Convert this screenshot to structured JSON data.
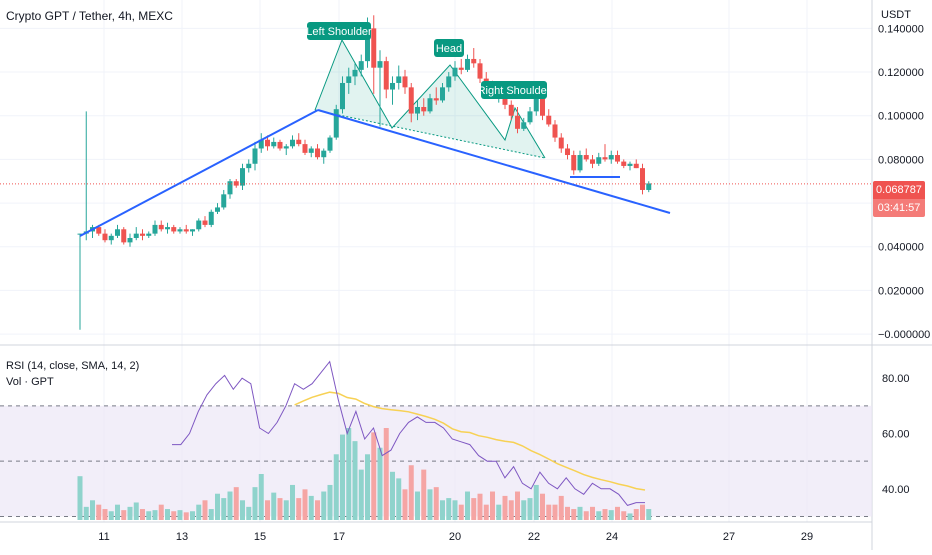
{
  "header": {
    "title": "Crypto GPT / Tether, 4h, MEXC",
    "currency": "USDT",
    "last_price": "0.068787",
    "countdown": "03:41:57"
  },
  "indicators": {
    "rsi_title": "RSI (14, close, SMA, 14, 2)",
    "volume_title": "Vol · GPT"
  },
  "annotations": {
    "left_shoulder": "Left Shoulder",
    "head": "Head",
    "right_shoulder": "Right Shoulder"
  },
  "colors": {
    "up": "#26a69a",
    "down": "#ef5350",
    "trendline": "#2962ff",
    "pattern": "#089981",
    "rsi_line": "#7e57c2",
    "rsi_sma": "#f7d154",
    "rsi_band": "#ede7f6"
  },
  "chart_data": {
    "type": "candlestick",
    "x_tick_labels": [
      "11",
      "13",
      "15",
      "17",
      "20",
      "22",
      "24",
      "27",
      "29"
    ],
    "price_axis": {
      "ticks": [
        "0.140000",
        "0.120000",
        "0.100000",
        "0.080000",
        "0.060000",
        "0.040000",
        "0.020000",
        "−0.000000"
      ],
      "range": [
        -0.005,
        0.153
      ]
    },
    "rsi_axis": {
      "ticks": [
        "80.00",
        "60.00",
        "40.00"
      ],
      "range": [
        28,
        92
      ],
      "band": [
        30,
        70
      ],
      "midline": 50
    },
    "candles": [
      [
        0.046,
        0.046,
        0.002,
        0.046
      ],
      [
        0.046,
        0.102,
        0.043,
        0.047
      ],
      [
        0.047,
        0.05,
        0.044,
        0.049
      ],
      [
        0.049,
        0.05,
        0.045,
        0.046
      ],
      [
        0.046,
        0.048,
        0.042,
        0.043
      ],
      [
        0.043,
        0.046,
        0.041,
        0.045
      ],
      [
        0.045,
        0.05,
        0.044,
        0.048
      ],
      [
        0.048,
        0.049,
        0.041,
        0.042
      ],
      [
        0.042,
        0.046,
        0.04,
        0.044
      ],
      [
        0.044,
        0.049,
        0.043,
        0.046
      ],
      [
        0.046,
        0.048,
        0.043,
        0.045
      ],
      [
        0.045,
        0.047,
        0.044,
        0.046
      ],
      [
        0.046,
        0.052,
        0.045,
        0.05
      ],
      [
        0.05,
        0.052,
        0.047,
        0.048
      ],
      [
        0.048,
        0.051,
        0.046,
        0.049
      ],
      [
        0.049,
        0.05,
        0.046,
        0.047
      ],
      [
        0.047,
        0.049,
        0.046,
        0.048
      ],
      [
        0.048,
        0.05,
        0.046,
        0.047
      ],
      [
        0.047,
        0.048,
        0.045,
        0.048
      ],
      [
        0.048,
        0.053,
        0.047,
        0.052
      ],
      [
        0.052,
        0.054,
        0.049,
        0.05
      ],
      [
        0.05,
        0.057,
        0.049,
        0.056
      ],
      [
        0.056,
        0.06,
        0.055,
        0.058
      ],
      [
        0.058,
        0.066,
        0.057,
        0.064
      ],
      [
        0.064,
        0.071,
        0.062,
        0.07
      ],
      [
        0.07,
        0.071,
        0.067,
        0.068
      ],
      [
        0.068,
        0.078,
        0.066,
        0.076
      ],
      [
        0.076,
        0.08,
        0.074,
        0.078
      ],
      [
        0.078,
        0.088,
        0.075,
        0.085
      ],
      [
        0.085,
        0.092,
        0.083,
        0.089
      ],
      [
        0.089,
        0.091,
        0.084,
        0.086
      ],
      [
        0.086,
        0.09,
        0.085,
        0.088
      ],
      [
        0.088,
        0.089,
        0.084,
        0.085
      ],
      [
        0.085,
        0.087,
        0.082,
        0.086
      ],
      [
        0.086,
        0.091,
        0.085,
        0.089
      ],
      [
        0.089,
        0.092,
        0.086,
        0.087
      ],
      [
        0.087,
        0.089,
        0.082,
        0.083
      ],
      [
        0.083,
        0.086,
        0.081,
        0.085
      ],
      [
        0.085,
        0.087,
        0.08,
        0.081
      ],
      [
        0.081,
        0.085,
        0.078,
        0.084
      ],
      [
        0.084,
        0.091,
        0.083,
        0.09
      ],
      [
        0.09,
        0.105,
        0.089,
        0.103
      ],
      [
        0.103,
        0.118,
        0.101,
        0.115
      ],
      [
        0.115,
        0.122,
        0.11,
        0.118
      ],
      [
        0.118,
        0.124,
        0.114,
        0.121
      ],
      [
        0.121,
        0.128,
        0.118,
        0.125
      ],
      [
        0.125,
        0.145,
        0.122,
        0.14
      ],
      [
        0.14,
        0.146,
        0.11,
        0.122
      ],
      [
        0.122,
        0.13,
        0.095,
        0.125
      ],
      [
        0.125,
        0.127,
        0.108,
        0.112
      ],
      [
        0.112,
        0.118,
        0.105,
        0.115
      ],
      [
        0.115,
        0.123,
        0.112,
        0.118
      ],
      [
        0.118,
        0.121,
        0.11,
        0.113
      ],
      [
        0.113,
        0.115,
        0.097,
        0.101
      ],
      [
        0.101,
        0.107,
        0.098,
        0.104
      ],
      [
        0.104,
        0.108,
        0.1,
        0.102
      ],
      [
        0.102,
        0.11,
        0.101,
        0.108
      ],
      [
        0.108,
        0.113,
        0.105,
        0.107
      ],
      [
        0.107,
        0.115,
        0.106,
        0.113
      ],
      [
        0.113,
        0.12,
        0.111,
        0.118
      ],
      [
        0.118,
        0.125,
        0.116,
        0.122
      ],
      [
        0.122,
        0.126,
        0.119,
        0.121
      ],
      [
        0.121,
        0.128,
        0.12,
        0.126
      ],
      [
        0.126,
        0.131,
        0.122,
        0.124
      ],
      [
        0.124,
        0.126,
        0.115,
        0.117
      ],
      [
        0.117,
        0.12,
        0.112,
        0.114
      ],
      [
        0.114,
        0.116,
        0.108,
        0.11
      ],
      [
        0.11,
        0.114,
        0.106,
        0.112
      ],
      [
        0.112,
        0.113,
        0.103,
        0.105
      ],
      [
        0.105,
        0.107,
        0.098,
        0.1
      ],
      [
        0.1,
        0.104,
        0.092,
        0.094
      ],
      [
        0.094,
        0.099,
        0.093,
        0.097
      ],
      [
        0.097,
        0.104,
        0.096,
        0.102
      ],
      [
        0.102,
        0.111,
        0.1,
        0.108
      ],
      [
        0.108,
        0.111,
        0.098,
        0.1
      ],
      [
        0.1,
        0.103,
        0.095,
        0.096
      ],
      [
        0.096,
        0.098,
        0.088,
        0.09
      ],
      [
        0.09,
        0.092,
        0.083,
        0.085
      ],
      [
        0.085,
        0.087,
        0.08,
        0.082
      ],
      [
        0.082,
        0.084,
        0.073,
        0.075
      ],
      [
        0.075,
        0.084,
        0.074,
        0.082
      ],
      [
        0.082,
        0.085,
        0.079,
        0.08
      ],
      [
        0.08,
        0.082,
        0.076,
        0.078
      ],
      [
        0.078,
        0.083,
        0.077,
        0.081
      ],
      [
        0.081,
        0.087,
        0.079,
        0.08
      ],
      [
        0.08,
        0.084,
        0.078,
        0.082
      ],
      [
        0.082,
        0.084,
        0.078,
        0.079
      ],
      [
        0.079,
        0.08,
        0.076,
        0.077
      ],
      [
        0.077,
        0.079,
        0.075,
        0.078
      ],
      [
        0.078,
        0.08,
        0.076,
        0.076
      ],
      [
        0.076,
        0.078,
        0.064,
        0.066
      ],
      [
        0.066,
        0.07,
        0.065,
        0.069
      ]
    ],
    "volume": [
      40,
      12,
      18,
      14,
      10,
      8,
      14,
      9,
      12,
      16,
      10,
      8,
      9,
      14,
      10,
      8,
      9,
      7,
      8,
      14,
      18,
      10,
      24,
      20,
      26,
      30,
      18,
      12,
      30,
      42,
      18,
      25,
      20,
      18,
      32,
      20,
      28,
      22,
      18,
      26,
      32,
      60,
      78,
      84,
      72,
      46,
      60,
      80,
      66,
      84,
      44,
      38,
      28,
      50,
      26,
      46,
      28,
      30,
      18,
      20,
      18,
      14,
      26,
      20,
      24,
      14,
      26,
      14,
      22,
      18,
      26,
      18,
      20,
      32,
      24,
      14,
      14,
      22,
      12,
      10,
      12,
      8,
      12,
      8,
      10,
      9,
      12,
      8,
      6,
      10,
      14,
      10
    ],
    "rsi": [
      56,
      56,
      60,
      68,
      74,
      78,
      81,
      76,
      80,
      78,
      62,
      60,
      64,
      70,
      78,
      76,
      78,
      82,
      86,
      72,
      60,
      68,
      58,
      62,
      52,
      54,
      60,
      64,
      66,
      64,
      64,
      62,
      58,
      57,
      56,
      52,
      50,
      50,
      44,
      48,
      42,
      40,
      46,
      42,
      40,
      44,
      40,
      38,
      42,
      40,
      40,
      38,
      34,
      35,
      35
    ]
  }
}
